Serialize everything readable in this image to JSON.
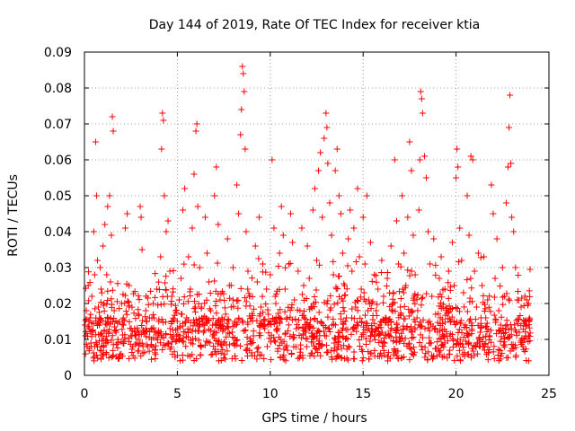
{
  "chart_data": {
    "type": "scatter",
    "title": "Day 144 of 2019, Rate Of TEC Index for receiver ktia",
    "xlabel": "GPS time / hours",
    "ylabel": "ROTI / TECUs",
    "xlim": [
      0,
      25
    ],
    "ylim": [
      0,
      0.09
    ],
    "xticks": [
      0,
      5,
      10,
      15,
      20,
      25
    ],
    "xtick_labels": [
      "0",
      "5",
      "10",
      "15",
      "20",
      "25"
    ],
    "yticks": [
      0,
      0.01,
      0.02,
      0.03,
      0.04,
      0.05,
      0.06,
      0.07,
      0.08,
      0.09
    ],
    "ytick_labels": [
      "0",
      "0.01",
      "0.02",
      "0.03",
      "0.04",
      "0.05",
      "0.06",
      "0.07",
      "0.08",
      "0.09"
    ],
    "grid": true,
    "marker": "+",
    "color": "#ff0000",
    "series": [
      {
        "name": "ROTI",
        "points": [
          [
            0.05,
            0.011
          ],
          [
            0.1,
            0.018
          ],
          [
            0.15,
            0.008
          ],
          [
            0.2,
            0.025
          ],
          [
            0.25,
            0.013
          ],
          [
            0.3,
            0.016
          ],
          [
            0.35,
            0.009
          ],
          [
            0.4,
            0.022
          ],
          [
            0.45,
            0.012
          ],
          [
            0.5,
            0.04
          ],
          [
            0.55,
            0.028
          ],
          [
            0.6,
            0.065
          ],
          [
            0.65,
            0.05
          ],
          [
            0.7,
            0.032
          ],
          [
            0.75,
            0.019
          ],
          [
            0.8,
            0.014
          ],
          [
            0.85,
            0.03
          ],
          [
            0.9,
            0.024
          ],
          [
            0.95,
            0.011
          ],
          [
            1.0,
            0.036
          ],
          [
            1.05,
            0.02
          ],
          [
            1.1,
            0.042
          ],
          [
            1.15,
            0.015
          ],
          [
            1.2,
            0.028
          ],
          [
            1.25,
            0.047
          ],
          [
            1.3,
            0.012
          ],
          [
            1.35,
            0.05
          ],
          [
            1.4,
            0.026
          ],
          [
            1.45,
            0.039
          ],
          [
            1.5,
            0.072
          ],
          [
            1.55,
            0.068
          ],
          [
            1.6,
            0.018
          ],
          [
            1.7,
            0.012
          ],
          [
            1.8,
            0.01
          ],
          [
            2.0,
            0.02
          ],
          [
            2.1,
            0.014
          ],
          [
            2.2,
            0.041
          ],
          [
            2.3,
            0.045
          ],
          [
            2.4,
            0.025
          ],
          [
            2.5,
            0.011
          ],
          [
            2.6,
            0.008
          ],
          [
            2.7,
            0.013
          ],
          [
            2.8,
            0.009
          ],
          [
            2.9,
            0.012
          ],
          [
            3.0,
            0.047
          ],
          [
            3.05,
            0.044
          ],
          [
            3.1,
            0.035
          ],
          [
            3.2,
            0.012
          ],
          [
            3.3,
            0.018
          ],
          [
            3.4,
            0.008
          ],
          [
            3.5,
            0.016
          ],
          [
            3.6,
            0.01
          ],
          [
            3.7,
            0.02
          ],
          [
            3.8,
            0.007
          ],
          [
            3.9,
            0.024
          ],
          [
            4.0,
            0.015
          ],
          [
            4.1,
            0.033
          ],
          [
            4.15,
            0.063
          ],
          [
            4.2,
            0.073
          ],
          [
            4.25,
            0.071
          ],
          [
            4.3,
            0.05
          ],
          [
            4.4,
            0.04
          ],
          [
            4.5,
            0.043
          ],
          [
            4.6,
            0.029
          ],
          [
            4.7,
            0.022
          ],
          [
            4.8,
            0.011
          ],
          [
            4.9,
            0.018
          ],
          [
            5.0,
            0.013
          ],
          [
            5.1,
            0.021
          ],
          [
            5.2,
            0.027
          ],
          [
            5.3,
            0.046
          ],
          [
            5.4,
            0.052
          ],
          [
            5.5,
            0.016
          ],
          [
            5.6,
            0.033
          ],
          [
            5.7,
            0.024
          ],
          [
            5.8,
            0.041
          ],
          [
            5.9,
            0.056
          ],
          [
            6.0,
            0.068
          ],
          [
            6.05,
            0.07
          ],
          [
            6.1,
            0.047
          ],
          [
            6.2,
            0.03
          ],
          [
            6.3,
            0.019
          ],
          [
            6.4,
            0.012
          ],
          [
            6.5,
            0.044
          ],
          [
            6.6,
            0.034
          ],
          [
            6.7,
            0.026
          ],
          [
            6.8,
            0.018
          ],
          [
            6.9,
            0.011
          ],
          [
            7.0,
            0.05
          ],
          [
            7.1,
            0.058
          ],
          [
            7.2,
            0.042
          ],
          [
            7.3,
            0.021
          ],
          [
            7.4,
            0.016
          ],
          [
            7.5,
            0.009
          ],
          [
            7.6,
            0.013
          ],
          [
            7.7,
            0.038
          ],
          [
            7.8,
            0.025
          ],
          [
            7.9,
            0.019
          ],
          [
            8.0,
            0.03
          ],
          [
            8.1,
            0.014
          ],
          [
            8.2,
            0.053
          ],
          [
            8.3,
            0.045
          ],
          [
            8.4,
            0.067
          ],
          [
            8.45,
            0.074
          ],
          [
            8.5,
            0.086
          ],
          [
            8.55,
            0.084
          ],
          [
            8.6,
            0.079
          ],
          [
            8.65,
            0.063
          ],
          [
            8.7,
            0.04
          ],
          [
            8.8,
            0.029
          ],
          [
            8.9,
            0.022
          ],
          [
            9.0,
            0.016
          ],
          [
            9.1,
            0.011
          ],
          [
            9.2,
            0.036
          ],
          [
            9.3,
            0.026
          ],
          [
            9.4,
            0.044
          ],
          [
            9.5,
            0.019
          ],
          [
            9.6,
            0.031
          ],
          [
            9.7,
            0.013
          ],
          [
            9.8,
            0.024
          ],
          [
            9.9,
            0.017
          ],
          [
            10.0,
            0.028
          ],
          [
            10.1,
            0.06
          ],
          [
            10.2,
            0.041
          ],
          [
            10.3,
            0.02
          ],
          [
            10.4,
            0.013
          ],
          [
            10.5,
            0.034
          ],
          [
            10.6,
            0.047
          ],
          [
            10.7,
            0.039
          ],
          [
            10.8,
            0.024
          ],
          [
            10.9,
            0.016
          ],
          [
            11.0,
            0.031
          ],
          [
            11.1,
            0.045
          ],
          [
            11.2,
            0.037
          ],
          [
            11.3,
            0.021
          ],
          [
            11.4,
            0.013
          ],
          [
            11.5,
            0.029
          ],
          [
            11.6,
            0.018
          ],
          [
            11.7,
            0.041
          ],
          [
            11.8,
            0.025
          ],
          [
            11.9,
            0.012
          ],
          [
            12.0,
            0.036
          ],
          [
            12.1,
            0.027
          ],
          [
            12.2,
            0.019
          ],
          [
            12.3,
            0.046
          ],
          [
            12.4,
            0.052
          ],
          [
            12.5,
            0.032
          ],
          [
            12.6,
            0.057
          ],
          [
            12.7,
            0.062
          ],
          [
            12.8,
            0.044
          ],
          [
            12.9,
            0.066
          ],
          [
            13.0,
            0.073
          ],
          [
            13.05,
            0.069
          ],
          [
            13.1,
            0.059
          ],
          [
            13.2,
            0.048
          ],
          [
            13.3,
            0.039
          ],
          [
            13.4,
            0.028
          ],
          [
            13.5,
            0.057
          ],
          [
            13.6,
            0.063
          ],
          [
            13.7,
            0.05
          ],
          [
            13.8,
            0.045
          ],
          [
            13.9,
            0.034
          ],
          [
            14.0,
            0.025
          ],
          [
            14.1,
            0.016
          ],
          [
            14.2,
            0.038
          ],
          [
            14.3,
            0.046
          ],
          [
            14.4,
            0.029
          ],
          [
            14.5,
            0.041
          ],
          [
            14.6,
            0.019
          ],
          [
            14.7,
            0.052
          ],
          [
            14.8,
            0.033
          ],
          [
            14.9,
            0.024
          ],
          [
            15.0,
            0.044
          ],
          [
            15.1,
            0.031
          ],
          [
            15.2,
            0.05
          ],
          [
            15.3,
            0.021
          ],
          [
            15.4,
            0.037
          ],
          [
            15.5,
            0.012
          ],
          [
            15.6,
            0.028
          ],
          [
            15.7,
            0.018
          ],
          [
            15.8,
            0.024
          ],
          [
            15.9,
            0.014
          ],
          [
            16.0,
            0.032
          ],
          [
            16.1,
            0.022
          ],
          [
            16.2,
            0.016
          ],
          [
            16.3,
            0.027
          ],
          [
            16.4,
            0.011
          ],
          [
            16.5,
            0.036
          ],
          [
            16.6,
            0.02
          ],
          [
            16.7,
            0.06
          ],
          [
            16.8,
            0.043
          ],
          [
            16.9,
            0.031
          ],
          [
            17.0,
            0.019
          ],
          [
            17.1,
            0.05
          ],
          [
            17.2,
            0.034
          ],
          [
            17.3,
            0.025
          ],
          [
            17.4,
            0.044
          ],
          [
            17.5,
            0.065
          ],
          [
            17.6,
            0.057
          ],
          [
            17.7,
            0.039
          ],
          [
            17.8,
            0.028
          ],
          [
            17.9,
            0.016
          ],
          [
            18.0,
            0.046
          ],
          [
            18.05,
            0.06
          ],
          [
            18.1,
            0.079
          ],
          [
            18.15,
            0.077
          ],
          [
            18.2,
            0.073
          ],
          [
            18.3,
            0.061
          ],
          [
            18.4,
            0.055
          ],
          [
            18.5,
            0.04
          ],
          [
            18.6,
            0.031
          ],
          [
            18.7,
            0.022
          ],
          [
            18.8,
            0.038
          ],
          [
            18.9,
            0.017
          ],
          [
            19.0,
            0.012
          ],
          [
            19.1,
            0.027
          ],
          [
            19.2,
            0.033
          ],
          [
            19.3,
            0.019
          ],
          [
            19.4,
            0.024
          ],
          [
            19.5,
            0.011
          ],
          [
            19.6,
            0.029
          ],
          [
            19.7,
            0.015
          ],
          [
            19.8,
            0.037
          ],
          [
            19.9,
            0.025
          ],
          [
            20.0,
            0.055
          ],
          [
            20.05,
            0.063
          ],
          [
            20.1,
            0.058
          ],
          [
            20.2,
            0.041
          ],
          [
            20.3,
            0.032
          ],
          [
            20.4,
            0.023
          ],
          [
            20.5,
            0.014
          ],
          [
            20.6,
            0.05
          ],
          [
            20.7,
            0.039
          ],
          [
            20.8,
            0.061
          ],
          [
            20.9,
            0.06
          ],
          [
            21.0,
            0.029
          ],
          [
            21.1,
            0.019
          ],
          [
            21.2,
            0.034
          ],
          [
            21.3,
            0.012
          ],
          [
            21.4,
            0.025
          ],
          [
            21.5,
            0.033
          ],
          [
            21.6,
            0.016
          ],
          [
            21.7,
            0.021
          ],
          [
            21.8,
            0.011
          ],
          [
            21.9,
            0.053
          ],
          [
            22.0,
            0.045
          ],
          [
            22.1,
            0.027
          ],
          [
            22.2,
            0.038
          ],
          [
            22.3,
            0.018
          ],
          [
            22.4,
            0.014
          ],
          [
            22.5,
            0.03
          ],
          [
            22.6,
            0.022
          ],
          [
            22.7,
            0.048
          ],
          [
            22.8,
            0.058
          ],
          [
            22.85,
            0.069
          ],
          [
            22.9,
            0.078
          ],
          [
            22.95,
            0.059
          ],
          [
            23.0,
            0.044
          ],
          [
            23.1,
            0.04
          ],
          [
            23.2,
            0.03
          ],
          [
            23.3,
            0.021
          ],
          [
            23.4,
            0.012
          ],
          [
            23.5,
            0.019
          ],
          [
            23.6,
            0.008
          ],
          [
            23.7,
            0.015
          ],
          [
            23.8,
            0.021
          ],
          [
            23.9,
            0.011
          ]
        ],
        "band_note": "dense background of points between 0.004 and 0.02 across 0-24 h"
      }
    ]
  }
}
